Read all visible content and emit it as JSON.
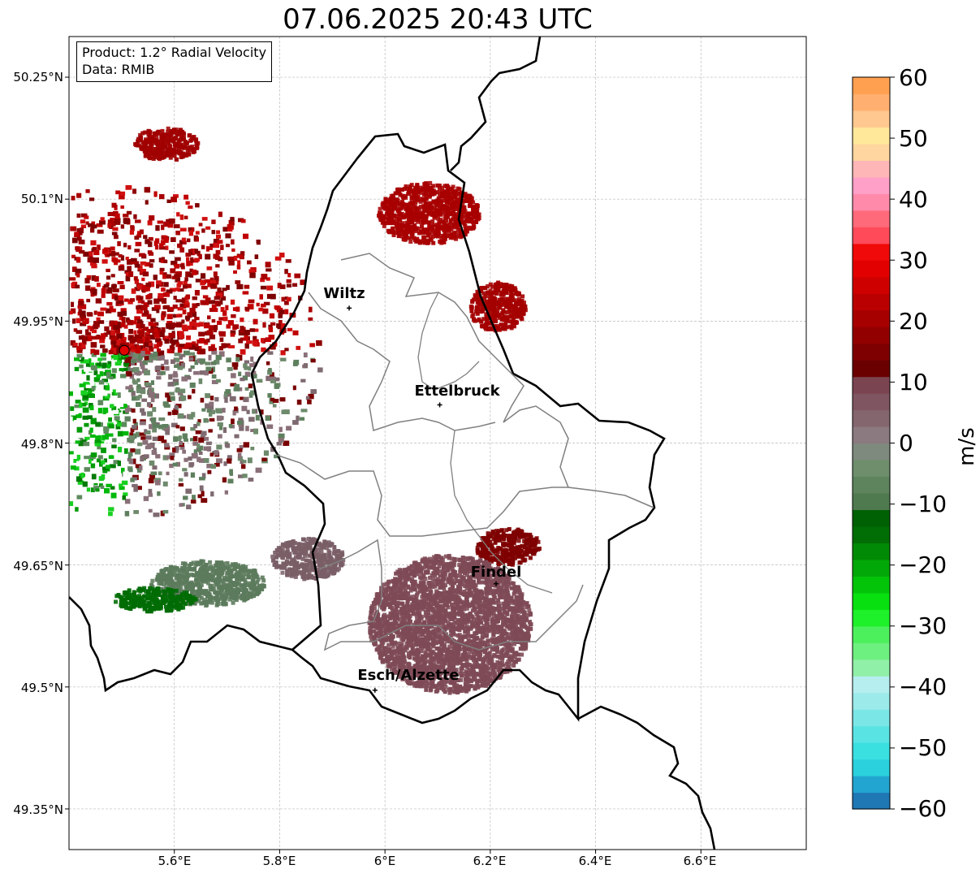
{
  "title": "07.06.2025 20:43 UTC",
  "info": {
    "product": "Product: 1.2° Radial Velocity",
    "data": "Data: RMIB"
  },
  "lat_ticks": [
    "50.25°N",
    "50.1°N",
    "49.95°N",
    "49.8°N",
    "49.65°N",
    "49.5°N",
    "49.35°N"
  ],
  "lon_ticks": [
    "5.6°E",
    "5.8°E",
    "6°E",
    "6.2°E",
    "6.4°E",
    "6.6°E"
  ],
  "places": [
    {
      "name": "Wiltz",
      "lat": 49.966,
      "lon": 5.932
    },
    {
      "name": "Ettelbruck",
      "lat": 49.847,
      "lon": 6.104
    },
    {
      "name": "Findel",
      "lat": 49.627,
      "lon": 6.211
    },
    {
      "name": "Esch/Alzette",
      "lat": 49.496,
      "lon": 5.981
    }
  ],
  "radar_site": {
    "lat": 49.914,
    "lon": 5.505
  },
  "colorbar": {
    "label": "m/s",
    "range": [
      -60,
      60
    ],
    "ticks": [
      "60",
      "50",
      "40",
      "30",
      "20",
      "10",
      "0",
      "−10",
      "−20",
      "−30",
      "−40",
      "−50",
      "−60"
    ],
    "colors": [
      "#1f77b4",
      "#22a5d0",
      "#2bd1dc",
      "#3adfe0",
      "#59e3e3",
      "#7be6e6",
      "#9ceaea",
      "#b6eef0",
      "#90f0a8",
      "#6ef080",
      "#4cf05c",
      "#1ef02a",
      "#08e010",
      "#04c40a",
      "#02a808",
      "#018a06",
      "#006e04",
      "#006004",
      "#4f7a4f",
      "#5d845d",
      "#6e8e6c",
      "#7e8a7e",
      "#8b7a80",
      "#84666e",
      "#7e5560",
      "#7a4450",
      "#6a0000",
      "#7e0000",
      "#920000",
      "#a60000",
      "#ba0000",
      "#ce0000",
      "#e20000",
      "#f00a0a",
      "#ff4a5a",
      "#ff6a7a",
      "#ff8aaa",
      "#ffa0c8",
      "#ffb6b6",
      "#ffd6a0",
      "#ffe89a",
      "#ffc890",
      "#ffb070",
      "#ffa050"
    ]
  },
  "echoes": [
    {
      "name": "storm-cell-north-outbound",
      "lat": 50.085,
      "lon": 6.08,
      "w": 125,
      "h": 75,
      "color": "#a80000"
    },
    {
      "name": "storm-cell-east-outbound",
      "lat": 49.97,
      "lon": 6.21,
      "w": 70,
      "h": 60,
      "color": "#a40000"
    },
    {
      "name": "storm-cell-findel-outbound",
      "lat": 49.675,
      "lon": 6.23,
      "w": 80,
      "h": 45,
      "color": "#7e0000"
    },
    {
      "name": "stratiform-south-near-zero",
      "lat": 49.58,
      "lon": 6.12,
      "w": 200,
      "h": 170,
      "color": "#7e4a56"
    },
    {
      "name": "weak-echo-southwest",
      "lat": 49.63,
      "lon": 5.66,
      "w": 140,
      "h": 55,
      "color": "#5c7a5c"
    },
    {
      "name": "weak-echo-west-green",
      "lat": 49.61,
      "lon": 5.56,
      "w": 100,
      "h": 30,
      "color": "#006c04"
    },
    {
      "name": "weak-echo-center-west",
      "lat": 49.66,
      "lon": 5.85,
      "w": 90,
      "h": 50,
      "color": "#7a5e66"
    },
    {
      "name": "storm-cell-northwest",
      "lat": 50.17,
      "lon": 5.58,
      "w": 80,
      "h": 40,
      "color": "#a00000"
    }
  ]
}
